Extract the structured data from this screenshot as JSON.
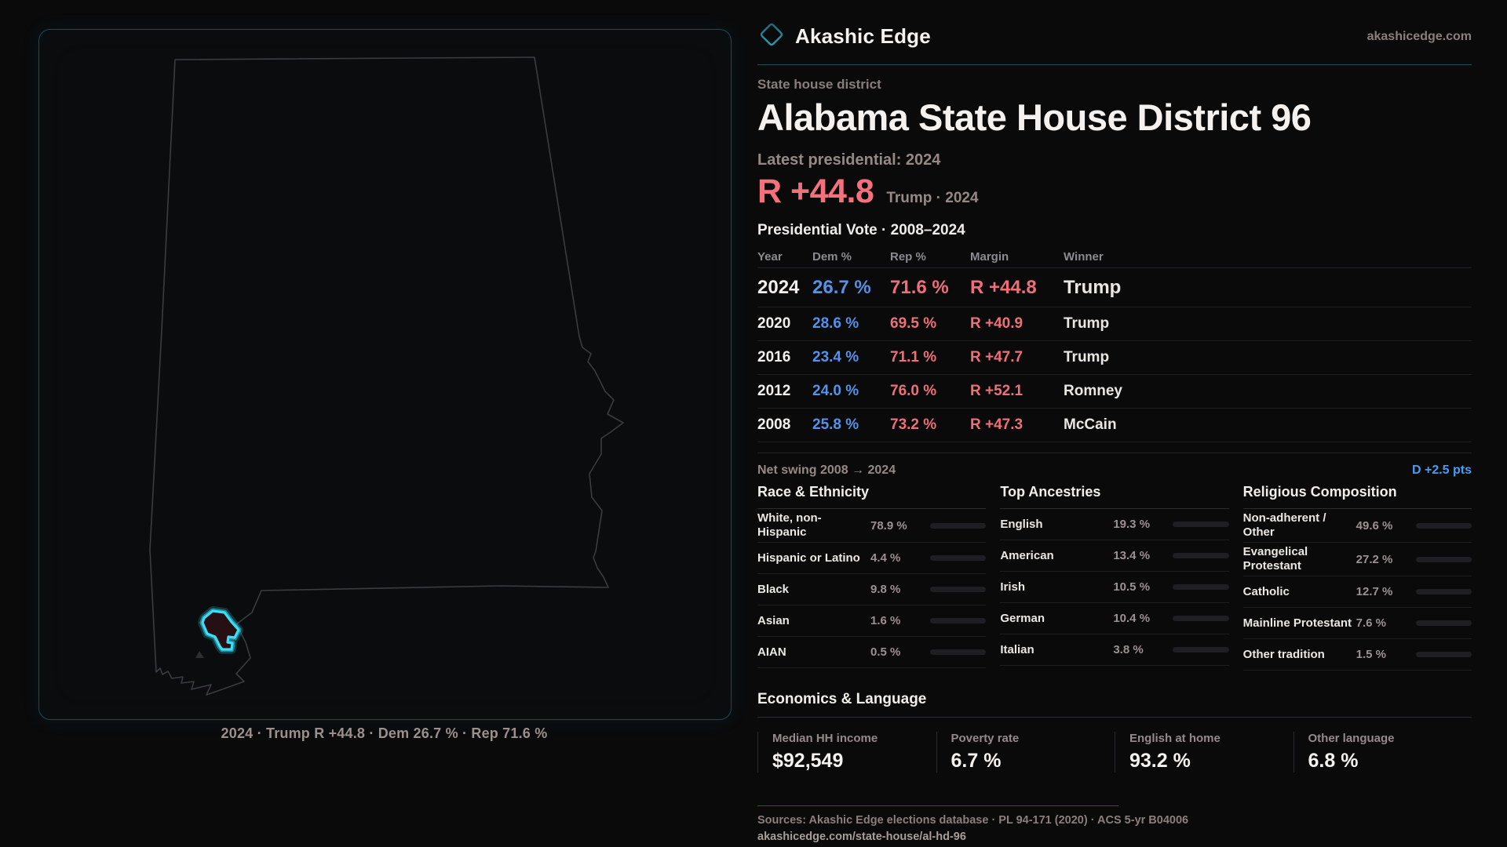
{
  "brand": {
    "name": "Akashic Edge",
    "domain": "akashicedge.com"
  },
  "header": {
    "kicker": "State house district",
    "title": "Alabama State House District 96"
  },
  "latest": {
    "label": "Latest presidential: 2024",
    "margin": "R +44.8",
    "sub": "Trump · 2024"
  },
  "vote_table": {
    "title": "Presidential Vote · 2008–2024",
    "columns": {
      "year": "Year",
      "dem": "Dem %",
      "rep": "Rep %",
      "margin": "Margin",
      "winner": "Winner"
    },
    "rows": [
      {
        "year": "2024",
        "dem": "26.7 %",
        "rep": "71.6 %",
        "margin": "R +44.8",
        "winner": "Trump",
        "_class": "row-big"
      },
      {
        "year": "2020",
        "dem": "28.6 %",
        "rep": "69.5 %",
        "margin": "R +40.9",
        "winner": "Trump"
      },
      {
        "year": "2016",
        "dem": "23.4 %",
        "rep": "71.1 %",
        "margin": "R +47.7",
        "winner": "Trump"
      },
      {
        "year": "2012",
        "dem": "24.0 %",
        "rep": "76.0 %",
        "margin": "R +52.1",
        "winner": "Romney"
      },
      {
        "year": "2008",
        "dem": "25.8 %",
        "rep": "73.2 %",
        "margin": "R +47.3",
        "winner": "McCain"
      }
    ]
  },
  "net_swing": {
    "label": "Net swing 2008 → 2024",
    "value": "D +2.5 pts"
  },
  "chart_data": [
    {
      "type": "table",
      "title": "Presidential Vote · 2008–2024",
      "categories": [
        "2024",
        "2020",
        "2016",
        "2012",
        "2008"
      ],
      "series": [
        {
          "name": "Dem %",
          "values": [
            26.7,
            28.6,
            23.4,
            24.0,
            25.8
          ]
        },
        {
          "name": "Rep %",
          "values": [
            71.6,
            69.5,
            71.1,
            76.0,
            73.2
          ]
        },
        {
          "name": "Margin",
          "values": [
            44.8,
            40.9,
            47.7,
            52.1,
            47.3
          ]
        },
        {
          "name": "Winner",
          "values": [
            "Trump",
            "Trump",
            "Trump",
            "Romney",
            "McCain"
          ]
        }
      ]
    },
    {
      "type": "bar",
      "title": "Race & Ethnicity",
      "categories": [
        "White, non-Hispanic",
        "Hispanic or Latino",
        "Black",
        "Asian",
        "AIAN"
      ],
      "values": [
        78.9,
        4.4,
        9.8,
        1.6,
        0.5
      ],
      "xlabel": "",
      "ylabel": "%",
      "ylim": [
        0,
        100
      ]
    },
    {
      "type": "bar",
      "title": "Top Ancestries",
      "categories": [
        "English",
        "American",
        "Irish",
        "German",
        "Italian"
      ],
      "values": [
        19.3,
        13.4,
        10.5,
        10.4,
        3.8
      ],
      "xlabel": "",
      "ylabel": "%",
      "ylim": [
        0,
        100
      ]
    },
    {
      "type": "bar",
      "title": "Religious Composition",
      "categories": [
        "Non-adherent / Other",
        "Evangelical Protestant",
        "Catholic",
        "Mainline Protestant",
        "Other tradition"
      ],
      "values": [
        49.6,
        27.2,
        12.7,
        7.6,
        1.5
      ],
      "xlabel": "",
      "ylabel": "%",
      "ylim": [
        0,
        100
      ]
    }
  ],
  "panels": {
    "race": {
      "title": "Race & Ethnicity",
      "rows": [
        {
          "label": "White, non-Hispanic",
          "value": "78.9 %",
          "pct": 78.9,
          "color": "#9aa9c8"
        },
        {
          "label": "Hispanic or Latino",
          "value": "4.4 %",
          "pct": 4.4,
          "color": "#e39b2f"
        },
        {
          "label": "Black",
          "value": "9.8 %",
          "pct": 9.8,
          "color": "#8d7df2"
        },
        {
          "label": "Asian",
          "value": "1.6 %",
          "pct": 1.6,
          "color": "#2fd0b0"
        },
        {
          "label": "AIAN",
          "value": "0.5 %",
          "pct": 0.5,
          "color": "#55555c"
        }
      ]
    },
    "ancestries": {
      "title": "Top Ancestries",
      "rows": [
        {
          "label": "English",
          "value": "19.3 %",
          "pct": 19.3,
          "color": "#8fa0be"
        },
        {
          "label": "American",
          "value": "13.4 %",
          "pct": 13.4,
          "color": "#8fa0be"
        },
        {
          "label": "Irish",
          "value": "10.5 %",
          "pct": 10.5,
          "color": "#8fa0be"
        },
        {
          "label": "German",
          "value": "10.4 %",
          "pct": 10.4,
          "color": "#8fa0be"
        },
        {
          "label": "Italian",
          "value": "3.8 %",
          "pct": 3.8,
          "color": "#8fa0be"
        }
      ]
    },
    "religion": {
      "title": "Religious Composition",
      "rows": [
        {
          "label": "Non-adherent / Other",
          "value": "49.6 %",
          "pct": 49.6,
          "color": "#6e7e99"
        },
        {
          "label": "Evangelical Protestant",
          "value": "27.2 %",
          "pct": 27.2,
          "color": "#e26b72"
        },
        {
          "label": "Catholic",
          "value": "12.7 %",
          "pct": 12.7,
          "color": "#eab02e"
        },
        {
          "label": "Mainline Protestant",
          "value": "7.6 %",
          "pct": 7.6,
          "color": "#4e8ee8"
        },
        {
          "label": "Other tradition",
          "value": "1.5 %",
          "pct": 1.5,
          "color": "#d8d4d0"
        }
      ]
    }
  },
  "economics": {
    "title": "Economics & Language",
    "stats": [
      {
        "label": "Median HH income",
        "value": "$92,549"
      },
      {
        "label": "Poverty rate",
        "value": "6.7 %"
      },
      {
        "label": "English at home",
        "value": "93.2 %"
      },
      {
        "label": "Other language",
        "value": "6.8 %"
      }
    ]
  },
  "footer": {
    "sources": "Sources: Akashic Edge elections database · PL 94-171 (2020) · ACS 5-yr B04006",
    "url": "akashicedge.com/state-house/al-hd-96"
  },
  "map": {
    "caption": "2024 · Trump R +44.8 · Dem 26.7 % · Rep 71.6 %"
  },
  "colors": {
    "background": "#0a0a0b",
    "accent_teal": "#3fdcf6",
    "dem_blue": "#5591e6",
    "rep_red": "#ef6f79",
    "swing_blue": "#459df5",
    "muted_text": "#958986",
    "state_outline": "#3b3b40"
  }
}
